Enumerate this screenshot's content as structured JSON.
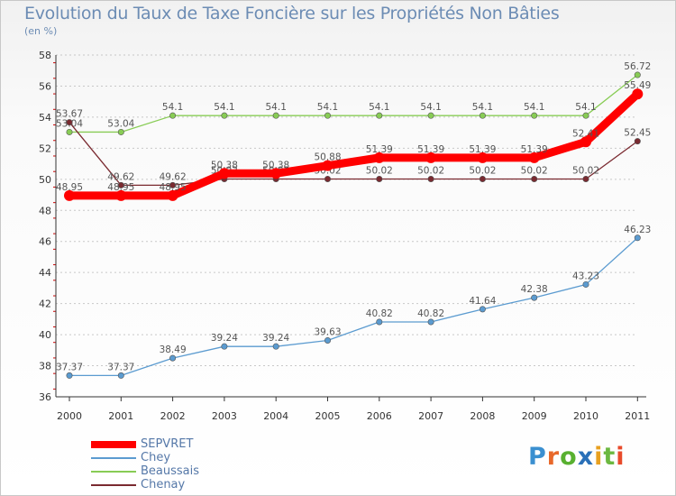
{
  "chart_data": {
    "type": "line",
    "title": "Evolution du Taux de Taxe Foncière sur les Propriétés Non Bâties",
    "subtitle": "(en %)",
    "x": [
      "2000",
      "2001",
      "2002",
      "2003",
      "2004",
      "2005",
      "2006",
      "2007",
      "2008",
      "2009",
      "2010",
      "2011"
    ],
    "ylim": [
      36,
      58
    ],
    "yticks": [
      "36",
      "38",
      "40",
      "42",
      "44",
      "46",
      "48",
      "50",
      "52",
      "54",
      "56",
      "58"
    ],
    "grid": "horizontal dashed",
    "legend_position": "bottom-left",
    "series": [
      {
        "name": "Beaussais",
        "color": "#88cc55",
        "values": [
          53.04,
          53.04,
          54.1,
          54.1,
          54.1,
          54.1,
          54.1,
          54.1,
          54.1,
          54.1,
          54.1,
          56.72
        ],
        "labels": [
          "53.04",
          "53.04",
          "54.1",
          "54.1",
          "54.1",
          "54.1",
          "54.1",
          "54.1",
          "54.1",
          "54.1",
          "54.1",
          "56.72"
        ]
      },
      {
        "name": "Chenay",
        "color": "#7a2a30",
        "values": [
          53.67,
          49.62,
          49.62,
          50.02,
          50.02,
          50.02,
          50.02,
          50.02,
          50.02,
          50.02,
          50.02,
          52.45
        ],
        "labels": [
          "53.67",
          "49.62",
          "49.62",
          "50.02",
          "50.02",
          "50.02",
          "50.02",
          "50.02",
          "50.02",
          "50.02",
          "50.02",
          "52.45"
        ]
      },
      {
        "name": "Chey",
        "color": "#5b9bd0",
        "values": [
          37.37,
          37.37,
          38.49,
          39.24,
          39.24,
          39.63,
          40.82,
          40.82,
          41.64,
          42.38,
          43.23,
          46.23
        ],
        "labels": [
          "37.37",
          "37.37",
          "38.49",
          "39.24",
          "39.24",
          "39.63",
          "40.82",
          "40.82",
          "41.64",
          "42.38",
          "43.23",
          "46.23"
        ]
      },
      {
        "name": "SEPVRET",
        "color": "#ff0000",
        "values": [
          48.95,
          48.95,
          48.95,
          50.38,
          50.38,
          50.88,
          51.39,
          51.39,
          51.39,
          51.39,
          52.41,
          55.49
        ],
        "labels": [
          "48.95",
          "48.95",
          "48.95",
          "50.38",
          "50.38",
          "50.88",
          "51.39",
          "51.39",
          "51.39",
          "51.39",
          "52.41",
          "55.49"
        ]
      }
    ],
    "legend": [
      "SEPVRET",
      "Chey",
      "Beaussais",
      "Chenay"
    ]
  },
  "logo": {
    "text": "Proxiti",
    "letters": [
      "P",
      "r",
      "o",
      "x",
      "i",
      "t",
      "i"
    ],
    "colors": [
      "#3a8fd0",
      "#e8682a",
      "#58b030",
      "#2a70b8",
      "#e8a020",
      "#6cb840",
      "#e84a2a"
    ]
  }
}
